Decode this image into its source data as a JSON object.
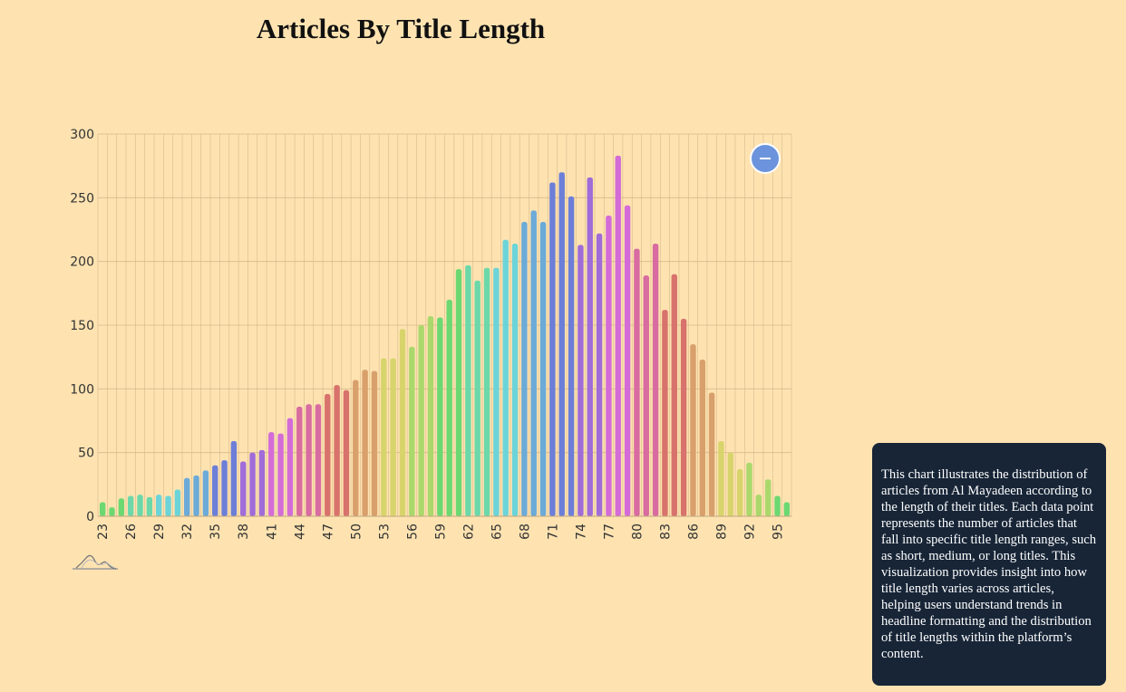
{
  "title": "Articles By Title Length",
  "description": "This chart illustrates the distribution of articles from Al Mayadeen according to the length of their titles. Each data point represents the number of articles that fall into specific title length ranges, such as short, medium, or long titles. This visualization provides insight into how title length varies across articles, helping users understand trends in headline formatting and the distribution of title lengths within the platform’s content.",
  "icons": {
    "zoom": "zoom-out-icon",
    "brush": "brush-preview-icon"
  },
  "colors": {
    "background": "#fee3b1",
    "grid": "#d8b98a",
    "description_bg": "#172537",
    "zoom_button": "#6c94dc",
    "bar_palette": [
      "#6cd872",
      "#6cd8aa",
      "#6cd4d8",
      "#6caad8",
      "#6c7ed8",
      "#a06cd8",
      "#d46cd8",
      "#d86ca0",
      "#d8726c",
      "#d8a06c",
      "#d8d46c",
      "#aad86c"
    ]
  },
  "chart_data": {
    "type": "bar",
    "title": "Articles By Title Length",
    "xlabel": "",
    "ylabel": "",
    "ylim": [
      0,
      300
    ],
    "yticks": [
      0,
      50,
      100,
      150,
      200,
      250,
      300
    ],
    "grid": true,
    "legend": "none",
    "x": [
      23,
      24,
      25,
      26,
      27,
      28,
      29,
      30,
      31,
      32,
      33,
      34,
      35,
      36,
      37,
      38,
      39,
      40,
      41,
      42,
      43,
      44,
      45,
      46,
      47,
      48,
      49,
      50,
      51,
      52,
      53,
      54,
      55,
      56,
      57,
      58,
      59,
      60,
      61,
      62,
      63,
      64,
      65,
      66,
      67,
      68,
      69,
      70,
      71,
      72,
      73,
      74,
      75,
      76,
      77,
      78,
      79,
      80,
      81,
      82,
      83,
      84,
      85,
      86,
      87,
      88,
      89,
      90,
      91,
      92,
      93,
      94,
      95,
      96
    ],
    "x_tick_labels": [
      "23",
      "26",
      "29",
      "32",
      "35",
      "38",
      "41",
      "44",
      "47",
      "50",
      "53",
      "56",
      "59",
      "62",
      "65",
      "68",
      "71",
      "74",
      "77",
      "80",
      "83",
      "86",
      "89",
      "92",
      "95"
    ],
    "values": [
      11,
      7,
      14,
      16,
      17,
      15,
      17,
      16,
      21,
      30,
      32,
      36,
      40,
      44,
      59,
      43,
      50,
      52,
      66,
      65,
      77,
      86,
      88,
      88,
      96,
      103,
      99,
      107,
      115,
      114,
      124,
      124,
      147,
      133,
      150,
      157,
      156,
      170,
      194,
      197,
      185,
      195,
      195,
      217,
      214,
      231,
      240,
      231,
      262,
      270,
      251,
      213,
      266,
      222,
      236,
      283,
      244,
      210,
      189,
      214,
      162,
      190,
      155,
      135,
      123,
      97,
      59,
      50,
      37,
      42,
      17,
      29,
      16,
      11
    ]
  }
}
